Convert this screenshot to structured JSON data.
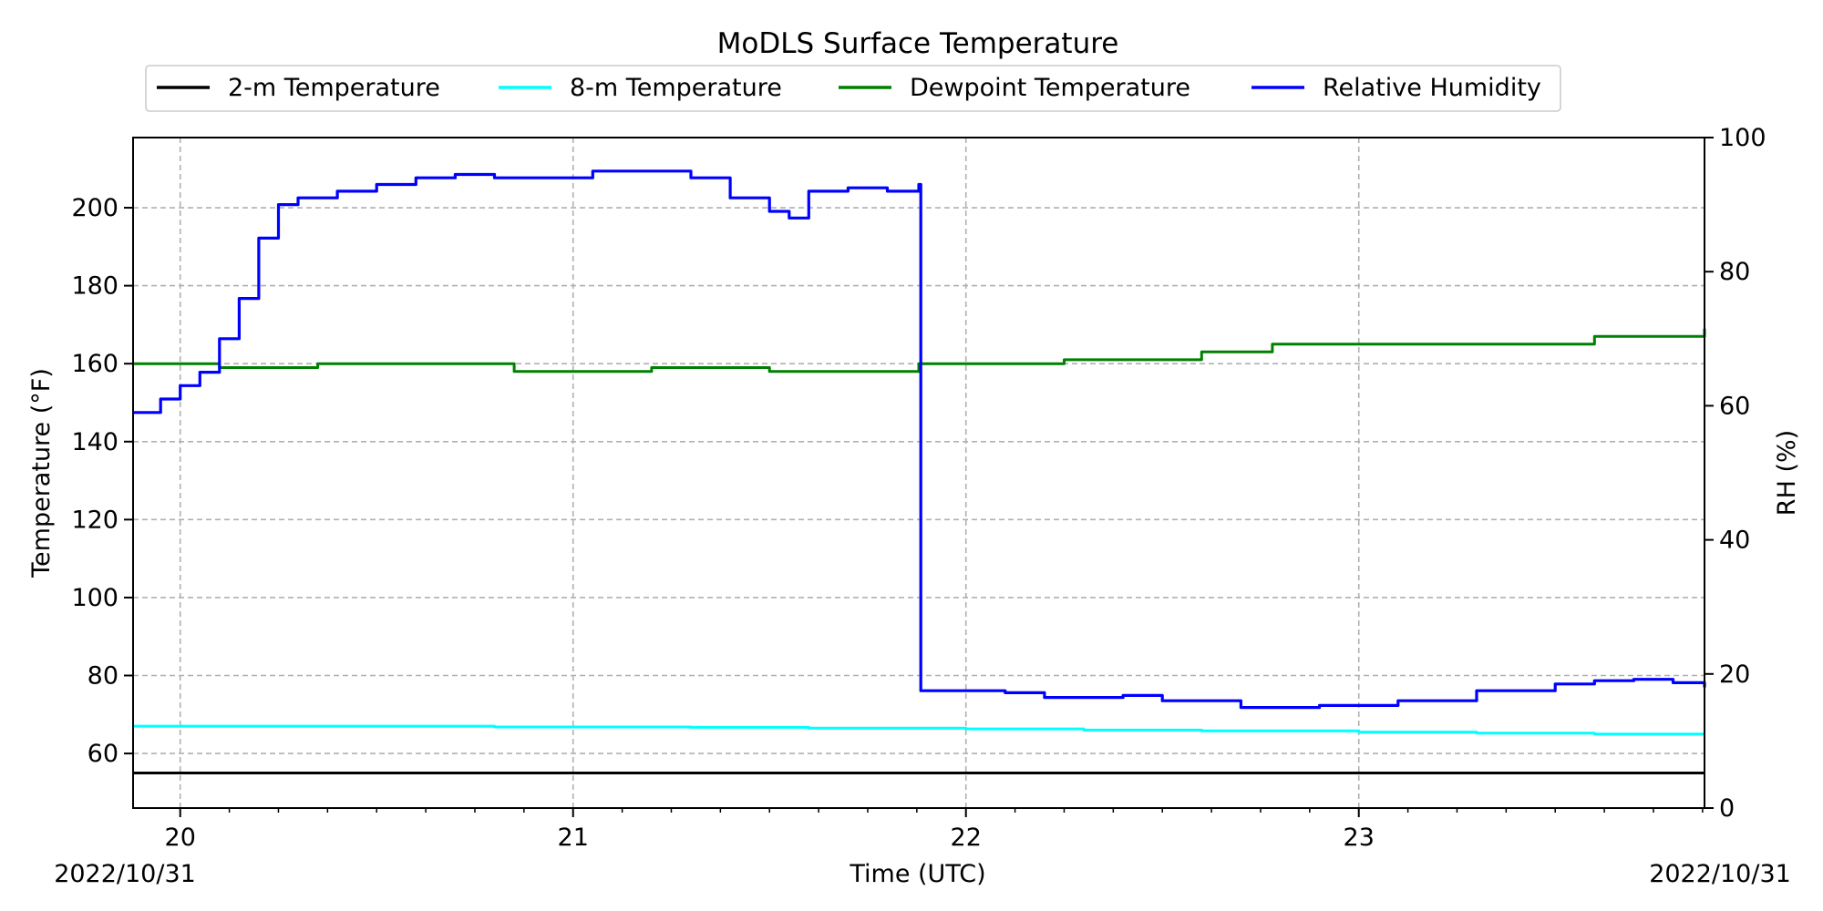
{
  "chart_data": {
    "type": "line",
    "title": "MoDLS Surface Temperature",
    "xlabel": "Time (UTC)",
    "ylabel": "Temperature ($^\\circ$F)",
    "ylabel_display": "Temperature (°F)",
    "y2label": "RH (%)",
    "x_date_left": "2022/10/31",
    "x_date_right": "2022/10/31",
    "xlim": [
      19.88,
      23.88
    ],
    "ylim": [
      46,
      218
    ],
    "y2lim": [
      0,
      100
    ],
    "x_ticks": [
      {
        "value": 20,
        "label": "20"
      },
      {
        "value": 21,
        "label": "21"
      },
      {
        "value": 22,
        "label": "22"
      },
      {
        "value": 23,
        "label": "23"
      }
    ],
    "y_ticks": [
      60,
      80,
      100,
      120,
      140,
      160,
      180,
      200
    ],
    "y2_ticks": [
      0,
      20,
      40,
      60,
      80,
      100
    ],
    "grid": true,
    "legend": {
      "placement": "top-center",
      "columns": 4
    },
    "series": [
      {
        "name": "2-m Temperature",
        "color": "#000000",
        "axis": "left",
        "x": [
          19.88,
          20.5,
          21.0,
          21.5,
          22.0,
          22.5,
          23.0,
          23.5,
          23.88
        ],
        "values": [
          55,
          55,
          55,
          55,
          55,
          55,
          55,
          55,
          55
        ]
      },
      {
        "name": "8-m Temperature",
        "color": "#00ffff",
        "axis": "left",
        "x": [
          19.88,
          20.2,
          20.5,
          20.8,
          21.0,
          21.3,
          21.6,
          22.0,
          22.3,
          22.6,
          23.0,
          23.3,
          23.6,
          23.88
        ],
        "values": [
          67,
          67,
          67,
          66.8,
          66.8,
          66.7,
          66.5,
          66.3,
          66,
          65.8,
          65.5,
          65.2,
          65,
          65
        ]
      },
      {
        "name": "Dewpoint Temperature",
        "color": "#008000",
        "axis": "left",
        "x": [
          19.88,
          20.05,
          20.1,
          20.35,
          20.8,
          20.85,
          21.05,
          21.2,
          21.5,
          21.88,
          22.25,
          22.6,
          22.78,
          23.6,
          23.88
        ],
        "values": [
          160,
          160,
          159,
          160,
          160,
          158,
          158,
          159,
          158,
          160,
          161,
          163,
          165,
          167,
          169
        ]
      },
      {
        "name": "Relative Humidity",
        "color": "#0000ff",
        "axis": "right",
        "x": [
          19.88,
          19.95,
          20.0,
          20.05,
          20.1,
          20.15,
          20.2,
          20.25,
          20.3,
          20.4,
          20.5,
          20.6,
          20.7,
          20.8,
          21.0,
          21.05,
          21.15,
          21.3,
          21.4,
          21.5,
          21.55,
          21.6,
          21.7,
          21.8,
          21.88,
          21.885,
          22.0,
          22.1,
          22.2,
          22.4,
          22.5,
          22.7,
          22.9,
          23.1,
          23.3,
          23.5,
          23.6,
          23.7,
          23.8,
          23.88
        ],
        "values": [
          59,
          61,
          63,
          65,
          70,
          76,
          85,
          90,
          91,
          92,
          93,
          94,
          94.5,
          94,
          94,
          95,
          95,
          94,
          91,
          89,
          88,
          92,
          92.5,
          92,
          93,
          17.5,
          17.5,
          17.2,
          16.5,
          16.8,
          16,
          15,
          15.3,
          16,
          17.5,
          18.5,
          19,
          19.2,
          18.7,
          18
        ]
      }
    ]
  }
}
